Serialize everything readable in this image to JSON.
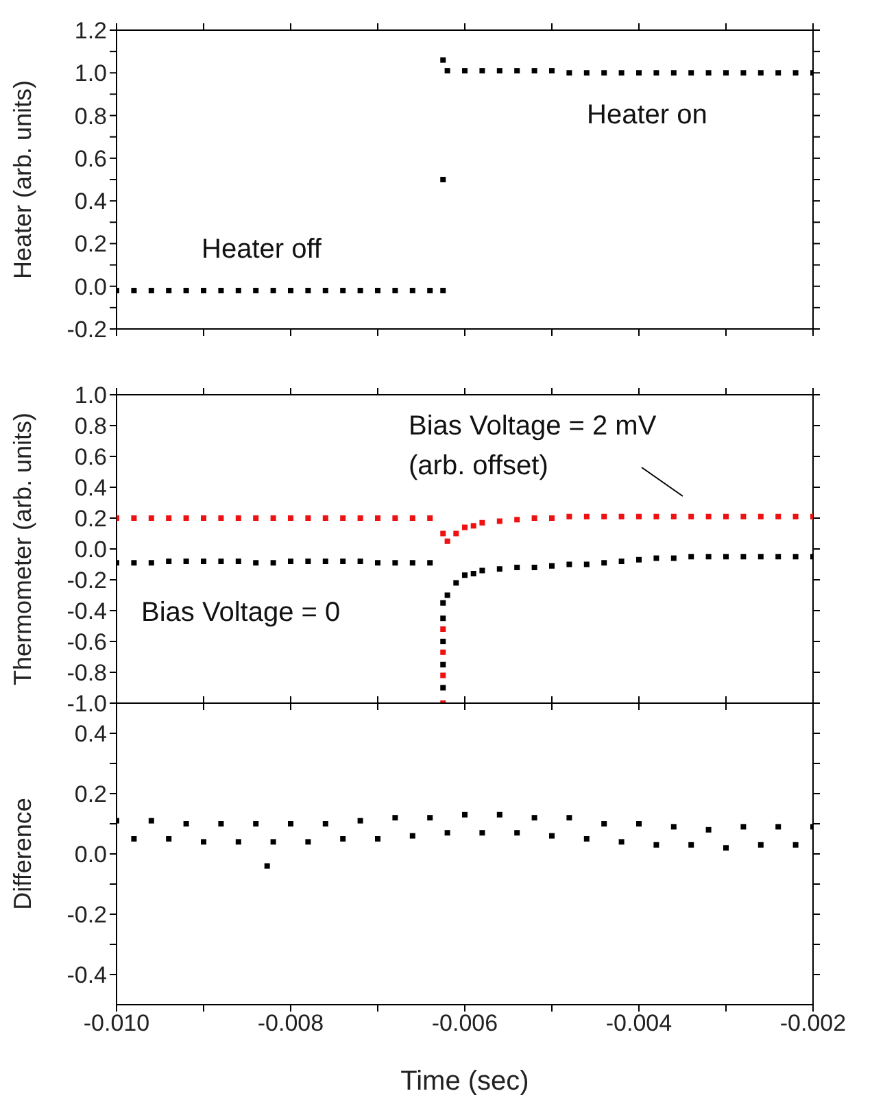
{
  "chart_data": [
    {
      "type": "scatter",
      "ylabel": "Heater (arb. units)",
      "marker": "square",
      "tick_labels": "y",
      "annotations": [
        "Heater off",
        "Heater on"
      ],
      "xlim": [
        -0.01,
        -0.002
      ],
      "xticks": [
        -0.01,
        {
          "value": -0.009,
          "label": null
        },
        -0.008,
        {
          "value": -0.007,
          "label": null
        },
        -0.006,
        {
          "value": -0.005,
          "label": null
        },
        -0.004,
        {
          "value": -0.003,
          "label": null
        },
        -0.002
      ],
      "ylim": [
        -0.2,
        1.2
      ],
      "yticks": [
        -0.2,
        {
          "value": -0.1,
          "label": null
        },
        {
          "value": 0,
          "label": "0.0"
        },
        {
          "value": 0.1,
          "label": null
        },
        0.2,
        {
          "value": 0.3,
          "label": null
        },
        0.4,
        {
          "value": 0.5,
          "label": null
        },
        0.6,
        {
          "value": 0.7,
          "label": null
        },
        0.8,
        {
          "value": 0.9,
          "label": null
        },
        {
          "value": 1,
          "label": "1.0"
        },
        {
          "value": 1.1,
          "label": null
        },
        1.2
      ],
      "x": [
        -0.01,
        -0.0098,
        -0.0096,
        -0.0094,
        -0.0092,
        -0.009,
        -0.0088,
        -0.0086,
        -0.0084,
        -0.0082,
        -0.008,
        -0.0078,
        -0.0076,
        -0.0074,
        -0.0072,
        -0.007,
        -0.0068,
        -0.0066,
        -0.0064,
        -0.00625,
        -0.00625,
        -0.00625,
        -0.0062,
        -0.006,
        -0.0058,
        -0.0056,
        -0.0054,
        -0.0052,
        -0.005,
        -0.0048,
        -0.0046,
        -0.0044,
        -0.0042,
        -0.004,
        -0.0038,
        -0.0036,
        -0.0034,
        -0.0032,
        -0.003,
        -0.0028,
        -0.0026,
        -0.0024,
        -0.0022,
        -0.002
      ],
      "series": [
        {
          "color": "#000000",
          "values": [
            -0.02,
            -0.02,
            -0.02,
            -0.02,
            -0.02,
            -0.02,
            -0.02,
            -0.02,
            -0.02,
            -0.02,
            -0.02,
            -0.02,
            -0.02,
            -0.02,
            -0.02,
            -0.02,
            -0.02,
            -0.02,
            -0.02,
            -0.02,
            0.5,
            1.06,
            1.01,
            1.01,
            1.01,
            1.01,
            1.01,
            1.01,
            1.01,
            1.0,
            1.0,
            1.0,
            1.0,
            1.0,
            1.0,
            1.0,
            1.0,
            1.0,
            1.0,
            1.0,
            1.0,
            1.0,
            1.0,
            1.0
          ]
        }
      ]
    },
    {
      "type": "scatter",
      "ylabel": "Thermometer (arb. units)",
      "marker": "square",
      "tick_labels": "y",
      "annotations": [
        "Bias Voltage = 2 mV (arb. offset)",
        "Bias Voltage = 0"
      ],
      "xlim": [
        -0.01,
        -0.002
      ],
      "xticks": [
        -0.01,
        {
          "value": -0.009,
          "label": null
        },
        -0.008,
        {
          "value": -0.007,
          "label": null
        },
        -0.006,
        {
          "value": -0.005,
          "label": null
        },
        -0.004,
        {
          "value": -0.003,
          "label": null
        },
        -0.002
      ],
      "ylim": [
        -1,
        1
      ],
      "yticks": [
        {
          "value": -1,
          "label": "-1.0"
        },
        -0.8,
        -0.6,
        -0.4,
        -0.2,
        {
          "value": 0,
          "label": "0.0"
        },
        0.2,
        0.4,
        0.6,
        0.8,
        {
          "value": 1,
          "label": "1.0"
        }
      ],
      "x": [
        -0.01,
        -0.0098,
        -0.0096,
        -0.0094,
        -0.0092,
        -0.009,
        -0.0088,
        -0.0086,
        -0.0084,
        -0.0082,
        -0.008,
        -0.0078,
        -0.0076,
        -0.0074,
        -0.0072,
        -0.007,
        -0.0068,
        -0.0066,
        -0.0064,
        -0.00625,
        -0.00625,
        -0.00625,
        -0.00625,
        -0.00625,
        -0.0062,
        -0.0061,
        -0.006,
        -0.0059,
        -0.0058,
        -0.0056,
        -0.0054,
        -0.0052,
        -0.005,
        -0.0048,
        -0.0046,
        -0.0044,
        -0.0042,
        -0.004,
        -0.0038,
        -0.0036,
        -0.0034,
        -0.0032,
        -0.003,
        -0.0028,
        -0.0026,
        -0.0024,
        -0.0022,
        -0.002
      ],
      "series": [
        {
          "color": "#ee1111",
          "values": [
            0.2,
            0.2,
            0.2,
            0.2,
            0.2,
            0.2,
            0.2,
            0.2,
            0.2,
            0.2,
            0.2,
            0.2,
            0.2,
            0.2,
            0.2,
            0.2,
            0.2,
            0.2,
            0.2,
            -1.0,
            -0.82,
            -0.67,
            -0.52,
            0.1,
            0.05,
            0.1,
            0.14,
            0.15,
            0.17,
            0.18,
            0.19,
            0.2,
            0.2,
            0.21,
            0.21,
            0.21,
            0.21,
            0.21,
            0.21,
            0.21,
            0.21,
            0.21,
            0.21,
            0.21,
            0.21,
            0.21,
            0.21,
            0.21
          ]
        },
        {
          "color": "#000000",
          "values": [
            -0.09,
            -0.09,
            -0.09,
            -0.08,
            -0.08,
            -0.08,
            -0.08,
            -0.08,
            -0.09,
            -0.09,
            -0.08,
            -0.08,
            -0.08,
            -0.08,
            -0.08,
            -0.09,
            -0.09,
            -0.09,
            -0.09,
            -0.9,
            -0.75,
            -0.6,
            -0.45,
            -0.35,
            -0.3,
            -0.22,
            -0.17,
            -0.16,
            -0.14,
            -0.13,
            -0.12,
            -0.12,
            -0.11,
            -0.1,
            -0.1,
            -0.09,
            -0.08,
            -0.07,
            -0.06,
            -0.06,
            -0.05,
            -0.05,
            -0.05,
            -0.05,
            -0.05,
            -0.05,
            -0.05,
            -0.05
          ]
        }
      ]
    },
    {
      "type": "scatter",
      "ylabel": "Difference",
      "xlabel": "Time (sec)",
      "marker": "square",
      "xlim": [
        -0.01,
        -0.002
      ],
      "xticks": [
        {
          "value": -0.01,
          "label": "-0.010"
        },
        {
          "value": -0.009,
          "label": null
        },
        -0.008,
        {
          "value": -0.007,
          "label": null
        },
        -0.006,
        {
          "value": -0.005,
          "label": null
        },
        -0.004,
        {
          "value": -0.003,
          "label": null
        },
        -0.002
      ],
      "ylim": [
        -0.5,
        0.5
      ],
      "yticks": [
        -0.4,
        {
          "value": -0.3,
          "label": null
        },
        -0.2,
        {
          "value": -0.1,
          "label": null
        },
        {
          "value": 0,
          "label": "0.0"
        },
        {
          "value": 0.1,
          "label": null
        },
        0.2,
        {
          "value": 0.3,
          "label": null
        },
        0.4
      ],
      "x": [
        -0.01,
        -0.0098,
        -0.0096,
        -0.0094,
        -0.0092,
        -0.009,
        -0.0088,
        -0.0086,
        -0.0084,
        -0.0082,
        -0.008,
        -0.0078,
        -0.0076,
        -0.0074,
        -0.0072,
        -0.007,
        -0.0068,
        -0.0066,
        -0.0064,
        -0.0062,
        -0.006,
        -0.0058,
        -0.0056,
        -0.0054,
        -0.0052,
        -0.005,
        -0.0048,
        -0.0046,
        -0.0044,
        -0.0042,
        -0.004,
        -0.0038,
        -0.0036,
        -0.0034,
        -0.0032,
        -0.003,
        -0.0028,
        -0.0026,
        -0.0024,
        -0.0022,
        -0.002,
        -0.00827
      ],
      "series": [
        {
          "color": "#000000",
          "values": [
            0.11,
            0.05,
            0.11,
            0.05,
            0.1,
            0.04,
            0.1,
            0.04,
            0.1,
            0.04,
            0.1,
            0.04,
            0.1,
            0.05,
            0.11,
            0.05,
            0.12,
            0.06,
            0.12,
            0.07,
            0.13,
            0.07,
            0.13,
            0.07,
            0.12,
            0.06,
            0.12,
            0.05,
            0.1,
            0.04,
            0.1,
            0.03,
            0.09,
            0.03,
            0.08,
            0.02,
            0.09,
            0.03,
            0.09,
            0.03,
            0.09,
            -0.04
          ]
        }
      ]
    }
  ]
}
